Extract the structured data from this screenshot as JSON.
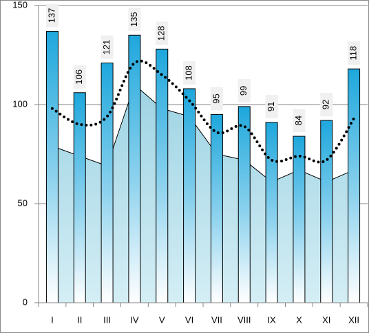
{
  "chart_data": {
    "type": "bar",
    "categories": [
      "I",
      "II",
      "III",
      "IV",
      "V",
      "VI",
      "VII",
      "VIII",
      "IX",
      "X",
      "XI",
      "XII"
    ],
    "series": [
      {
        "type": "area",
        "color": "#a8d8e6",
        "values": [
          79,
          74,
          69,
          110,
          98,
          94,
          75,
          72,
          61,
          67,
          61,
          67
        ]
      },
      {
        "type": "bar",
        "color": "#1ea7dc",
        "values": [
          137,
          106,
          121,
          135,
          128,
          108,
          95,
          99,
          91,
          84,
          92,
          118
        ]
      },
      {
        "type": "line",
        "color": "#000000",
        "values": [
          98,
          90,
          94,
          121,
          115,
          102,
          86,
          89,
          72,
          74,
          72,
          93
        ]
      }
    ],
    "ylim": [
      0,
      150
    ],
    "yticks": [
      0,
      50,
      100,
      150
    ],
    "grid": true
  }
}
